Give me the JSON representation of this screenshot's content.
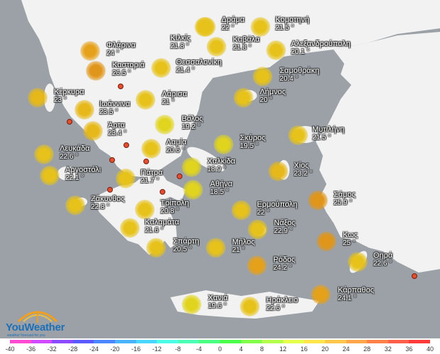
{
  "brand": {
    "name": "YouWeather",
    "tagline": "weather forecast for you"
  },
  "cities": [
    {
      "name": "Δράμα",
      "temp": "22 °",
      "color": "#e6c21a"
    },
    {
      "name": "Κομοτηνή",
      "temp": "21.5 °",
      "color": "#e6c21a"
    },
    {
      "name": "Φλάρινα",
      "temp": "24 °",
      "color": "#e6a11a"
    },
    {
      "name": "Κιλκίς",
      "temp": "21.8 °",
      "color": "#e6c21a"
    },
    {
      "name": "Καβάλα",
      "temp": "21.8 °",
      "color": "#e6c21a"
    },
    {
      "name": "Αλεξανδρούπολη",
      "temp": "20.1 °",
      "color": "#e6c21a"
    },
    {
      "name": "Καστοριά",
      "temp": "26.5 °",
      "color": "#e0961a"
    },
    {
      "name": "Θεσσαλονίκη",
      "temp": "21.4 °",
      "color": "#e6c21a"
    },
    {
      "name": "Σαμοθράκη",
      "temp": "20.4 °",
      "color": "#e6c21a"
    },
    {
      "name": "Κέρκυρα",
      "temp": "23 °",
      "color": "#e6b81a"
    },
    {
      "name": "Λάρισα",
      "temp": "21 °",
      "color": "#e6c21a"
    },
    {
      "name": "Λήμνος",
      "temp": "20 °",
      "color": "#e6c21a"
    },
    {
      "name": "Ιωάννινα",
      "temp": "23.5 °",
      "color": "#e6b81a"
    },
    {
      "name": "Βόλος",
      "temp": "19.2 °",
      "color": "#e1d41e"
    },
    {
      "name": "Άρτα",
      "temp": "23.4 °",
      "color": "#e6b81a"
    },
    {
      "name": "Μυτιλήνη",
      "temp": "21.5 °",
      "color": "#e6c21a"
    },
    {
      "name": "Σκύρος",
      "temp": "19.5 °",
      "color": "#e1d41e"
    },
    {
      "name": "Λευκάδα",
      "temp": "22.6 °",
      "color": "#e6c21a"
    },
    {
      "name": "Λαμία",
      "temp": "20.6 °",
      "color": "#e6c21a"
    },
    {
      "name": "Χαλκίδα",
      "temp": "18.9 °",
      "color": "#e1d41e"
    },
    {
      "name": "Αργοστόλι",
      "temp": "22.1 °",
      "color": "#e6c21a"
    },
    {
      "name": "Πάτρα",
      "temp": "21.7 °",
      "color": "#e6c21a"
    },
    {
      "name": "Χίος",
      "temp": "23.2 °",
      "color": "#e6b81a"
    },
    {
      "name": "Αθήνα",
      "temp": "18.5 °",
      "color": "#e1d41e"
    },
    {
      "name": "Ζάκυνθος",
      "temp": "22.8 °",
      "color": "#e6c21a"
    },
    {
      "name": "Σάμος",
      "temp": "25.9 °",
      "color": "#e0961a"
    },
    {
      "name": "Τρίπολη",
      "temp": "20.8 °",
      "color": "#e6c21a"
    },
    {
      "name": "Ερμούπολη",
      "temp": "22 °",
      "color": "#e6c21a"
    },
    {
      "name": "Νάξος",
      "temp": "22.9 °",
      "color": "#e6c21a"
    },
    {
      "name": "Καλαμάτα",
      "temp": "21.6 °",
      "color": "#e6c21a"
    },
    {
      "name": "Κως",
      "temp": "25 °",
      "color": "#e0961a"
    },
    {
      "name": "Σπάρτη",
      "temp": "20.5 °",
      "color": "#e6c21a"
    },
    {
      "name": "Μήλος",
      "temp": "21 °",
      "color": "#e6c21a"
    },
    {
      "name": "Ρόδος",
      "temp": "24.2 °",
      "color": "#e6a11a"
    },
    {
      "name": "Θηρά",
      "temp": "22.6 °",
      "color": "#e6c21a"
    },
    {
      "name": "Κάρπαθος",
      "temp": "24.1 °",
      "color": "#e6a11a"
    },
    {
      "name": "Χανιά",
      "temp": "19.6 °",
      "color": "#e1d41e"
    },
    {
      "name": "Ηράκλειο",
      "temp": "22.6 °",
      "color": "#e6c21a"
    }
  ],
  "scale": {
    "labels": [
      "-40",
      "-36",
      "-32",
      "-28",
      "-24",
      "-20",
      "-16",
      "-12",
      "-8",
      "-4",
      "0",
      "4",
      "8",
      "12",
      "16",
      "20",
      "24",
      "28",
      "32",
      "36",
      "40"
    ],
    "colors": [
      "#ff4bd2",
      "#d34bff",
      "#8c4bff",
      "#5a5aff",
      "#4b87ff",
      "#4bb4ff",
      "#4bd7ff",
      "#4bffe6",
      "#4bffb4",
      "#4bff82",
      "#4bff4b",
      "#82ff4b",
      "#b4ff4b",
      "#e6ff4b",
      "#ffe64b",
      "#ffc84b",
      "#ffa54b",
      "#ff824b",
      "#ff5f4b",
      "#ff3c3c"
    ]
  }
}
